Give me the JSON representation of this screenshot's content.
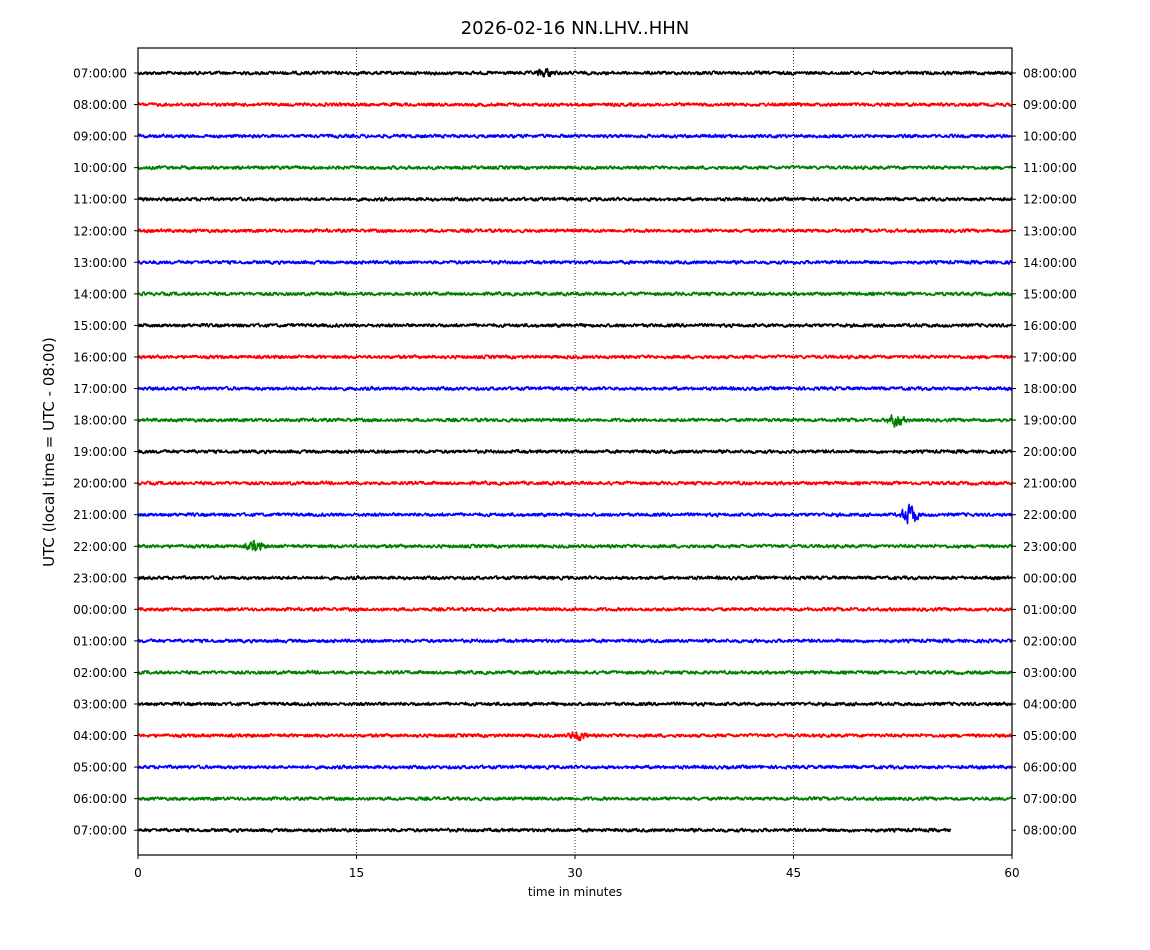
{
  "chart_data": {
    "type": "line",
    "title": "2026-02-16 NN.LHV..HHN",
    "xlabel": "time in minutes",
    "ylabel": "UTC (local time = UTC - 08:00)",
    "xlim": [
      0,
      60
    ],
    "x_ticks": [
      0,
      15,
      30,
      45,
      60
    ],
    "x_tick_labels": [
      "0",
      "15",
      "30",
      "45",
      "60"
    ],
    "grid": "vertical dotted lines at 15, 30, 45",
    "left_labels": [
      "07:00:00",
      "08:00:00",
      "09:00:00",
      "10:00:00",
      "11:00:00",
      "12:00:00",
      "13:00:00",
      "14:00:00",
      "15:00:00",
      "16:00:00",
      "17:00:00",
      "18:00:00",
      "19:00:00",
      "20:00:00",
      "21:00:00",
      "22:00:00",
      "23:00:00",
      "00:00:00",
      "01:00:00",
      "02:00:00",
      "03:00:00",
      "04:00:00",
      "05:00:00",
      "06:00:00",
      "07:00:00"
    ],
    "right_labels": [
      "08:00:00",
      "09:00:00",
      "10:00:00",
      "11:00:00",
      "12:00:00",
      "13:00:00",
      "14:00:00",
      "15:00:00",
      "16:00:00",
      "17:00:00",
      "18:00:00",
      "19:00:00",
      "20:00:00",
      "21:00:00",
      "22:00:00",
      "23:00:00",
      "00:00:00",
      "01:00:00",
      "02:00:00",
      "03:00:00",
      "04:00:00",
      "05:00:00",
      "06:00:00",
      "07:00:00",
      "08:00:00"
    ],
    "trace_colors": [
      "#000000",
      "#ff0000",
      "#0000ff",
      "#008000"
    ],
    "trace_end_minutes": [
      60,
      60,
      60,
      60,
      60,
      60,
      60,
      60,
      60,
      60,
      60,
      60,
      60,
      60,
      60,
      60,
      60,
      60,
      60,
      60,
      60,
      60,
      60,
      60,
      55.8
    ],
    "events": [
      {
        "row": 14,
        "minute": 53.0,
        "amplitude": 3.2
      },
      {
        "row": 11,
        "minute": 52.0,
        "amplitude": 2.0
      },
      {
        "row": 15,
        "minute": 8.0,
        "amplitude": 1.6
      },
      {
        "row": 21,
        "minute": 30.2,
        "amplitude": 1.5
      },
      {
        "row": 0,
        "minute": 28.0,
        "amplitude": 1.3
      }
    ]
  }
}
